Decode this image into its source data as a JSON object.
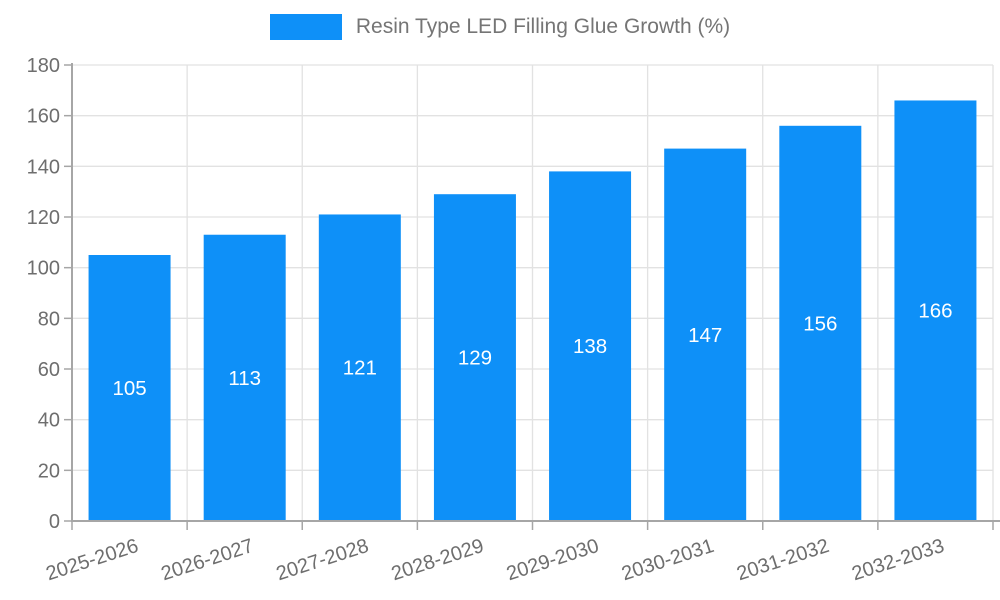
{
  "page": {
    "background": "#ffffff"
  },
  "legend": {
    "label": "Resin Type LED Filling Glue Growth (%)",
    "swatch_color": "#0e90f8"
  },
  "chart_data": {
    "type": "bar",
    "title": "Resin Type LED Filling Glue Growth (%)",
    "categories": [
      "2025-2026",
      "2026-2027",
      "2027-2028",
      "2028-2029",
      "2029-2030",
      "2030-2031",
      "2031-2032",
      "2032-2033"
    ],
    "values": [
      105,
      113,
      121,
      129,
      138,
      147,
      156,
      166
    ],
    "xlabel": "",
    "ylabel": "",
    "ylim": [
      0,
      180
    ],
    "ytick_step": 20,
    "ytick_labels": [
      "0",
      "20",
      "40",
      "60",
      "80",
      "100",
      "120",
      "140",
      "160",
      "180"
    ],
    "grid": true,
    "grid_vertical": true,
    "legend_position": "top-center",
    "bar_color": "#0e90f8",
    "bar_label_color": "#ffffff",
    "axis_color": "#a6a6a6",
    "grid_color": "#e2e2e2",
    "tick_label_color": "#6e6e6e",
    "x_label_rotation_deg": -18
  }
}
